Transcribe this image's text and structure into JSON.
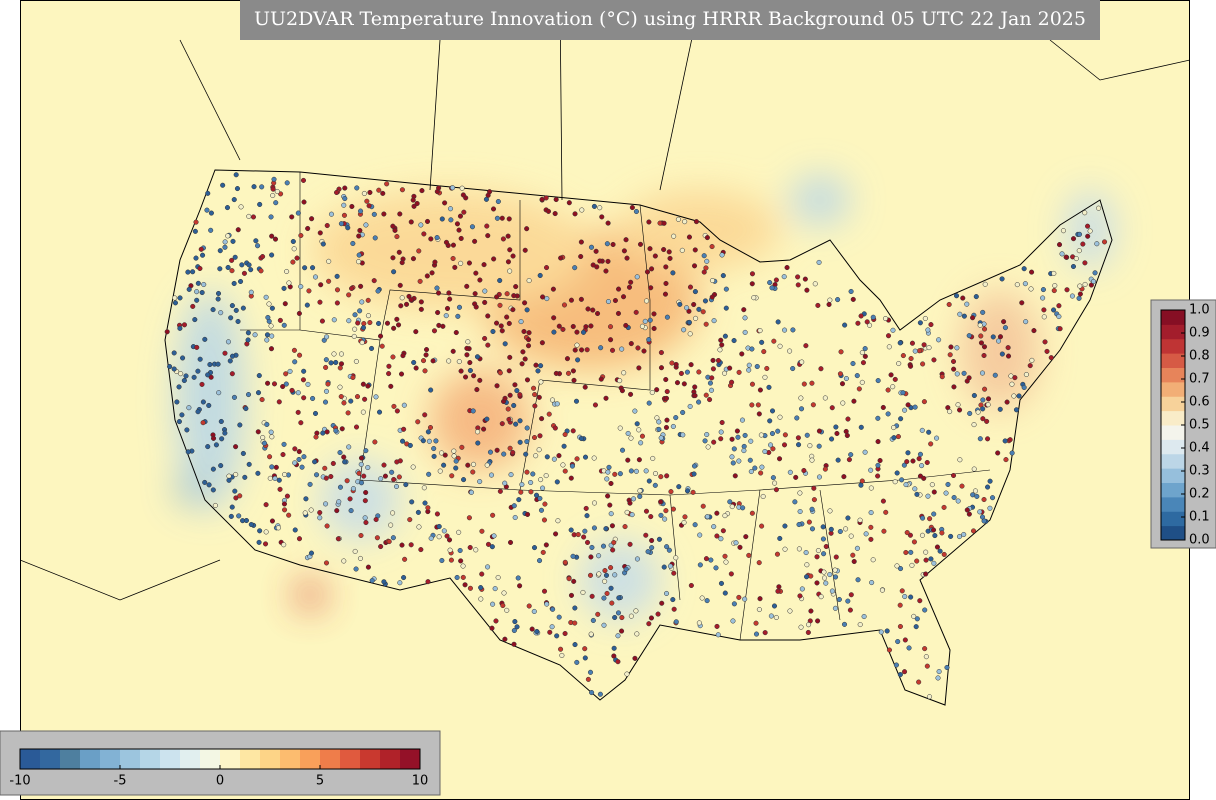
{
  "title": "UU2DVAR Temperature Innovation (°C) using HRRR Background 05 UTC 22 Jan 2025",
  "innovation_colorbar": {
    "lim": [
      -10,
      10
    ],
    "ticks": [
      -10,
      -5,
      0,
      5,
      10
    ],
    "colors": [
      "#2a5a97",
      "#33689f",
      "#4e7f9f",
      "#6a9fc6",
      "#82b2d4",
      "#9cc5de",
      "#b5d6e7",
      "#cce3ee",
      "#e1efef",
      "#f3f7e4",
      "#fdf5c8",
      "#fee7a3",
      "#fdd487",
      "#fcbc6f",
      "#f9a05a",
      "#ef7d4a",
      "#e05a3e",
      "#c9392f",
      "#b02229",
      "#941128"
    ]
  },
  "weight_colorbar": {
    "lim": [
      0,
      1
    ],
    "ticks": [
      {
        "value": 0,
        "label": "0.0"
      },
      {
        "value": 0.1,
        "label": "0.1"
      },
      {
        "value": 0.2,
        "label": "0.2"
      },
      {
        "value": 0.3,
        "label": "0.3"
      },
      {
        "value": 0.4,
        "label": "0.4"
      },
      {
        "value": 0.5,
        "label": "0.5"
      },
      {
        "value": 0.6,
        "label": "0.6"
      },
      {
        "value": 0.7,
        "label": "0.7"
      },
      {
        "value": 0.8,
        "label": "0.8"
      },
      {
        "value": 0.9,
        "label": "0.9"
      },
      {
        "value": 1,
        "label": "1.0"
      }
    ],
    "colors": [
      "#1f4f86",
      "#2e6aa1",
      "#4a86b8",
      "#6ea4cc",
      "#96bfdc",
      "#bcd6e7",
      "#dde9ef",
      "#f4f4ec",
      "#f9ecc8",
      "#f7d29a",
      "#f2ae76",
      "#e7845a",
      "#d65a45",
      "#bf3434",
      "#a31d2c",
      "#860f24"
    ]
  }
}
